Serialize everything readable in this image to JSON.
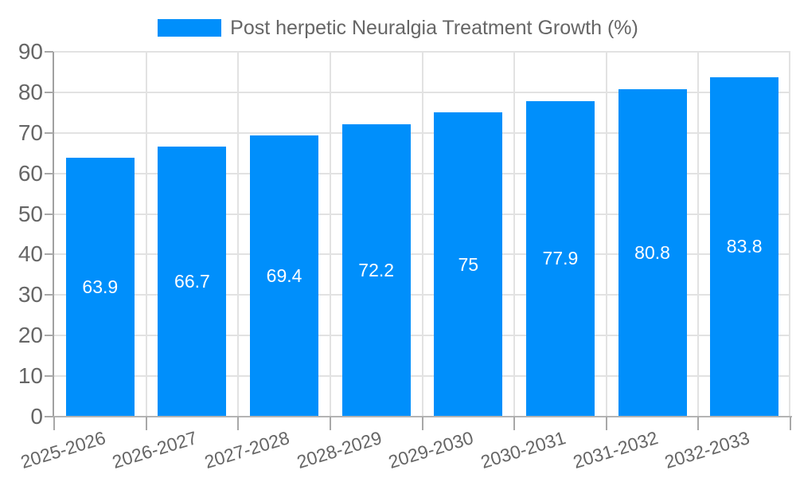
{
  "legend": {
    "label": "Post herpetic Neuralgia Treatment Growth (%)",
    "swatch_color": "#008FFB"
  },
  "chart_data": {
    "type": "bar",
    "title": "Post herpetic Neuralgia Treatment Growth (%)",
    "categories": [
      "2025-2026",
      "2026-2027",
      "2027-2028",
      "2028-2029",
      "2029-2030",
      "2030-2031",
      "2031-2032",
      "2032-2033"
    ],
    "values": [
      63.9,
      66.7,
      69.4,
      72.2,
      75,
      77.9,
      80.8,
      83.8
    ],
    "xlabel": "",
    "ylabel": "",
    "ylim": [
      0,
      90
    ],
    "y_ticks": [
      0,
      10,
      20,
      30,
      40,
      50,
      60,
      70,
      80,
      90
    ],
    "grid": true,
    "legend_position": "top",
    "bar_color": "#008FFB",
    "bar_label_color": "#ffffff",
    "axis_label_color": "#666666"
  }
}
